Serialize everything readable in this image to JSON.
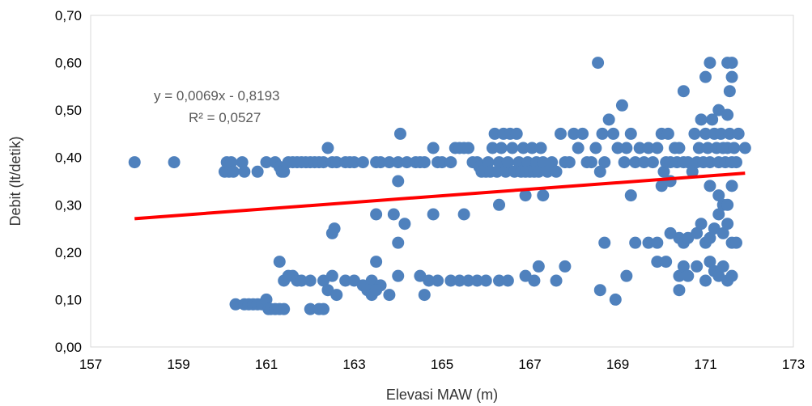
{
  "chart_data": {
    "type": "scatter",
    "title": "",
    "xlabel": "Elevasi MAW (m)",
    "ylabel": "Debit (lt/detik)",
    "xlim": [
      157,
      173
    ],
    "ylim": [
      0,
      0.7
    ],
    "xticks": [
      "157",
      "159",
      "161",
      "163",
      "165",
      "167",
      "169",
      "171",
      "173"
    ],
    "yticks": [
      "0,00",
      "0,10",
      "0,20",
      "0,30",
      "0,40",
      "0,50",
      "0,60",
      "0,70"
    ],
    "grid": false,
    "legend": "none",
    "marker_color": "#4F81BD",
    "trendline": {
      "type": "linear",
      "slope": 0.0069,
      "intercept": -0.8193,
      "x_range": [
        158.0,
        171.9
      ],
      "color": "#FF0000",
      "equation_text": "y = 0,0069x - 0,8193",
      "r2_text": "R² = 0,0527"
    },
    "points": [
      [
        158.0,
        0.39
      ],
      [
        158.9,
        0.39
      ],
      [
        160.05,
        0.37
      ],
      [
        160.1,
        0.39
      ],
      [
        160.15,
        0.37
      ],
      [
        160.2,
        0.39
      ],
      [
        160.25,
        0.37
      ],
      [
        160.45,
        0.39
      ],
      [
        160.5,
        0.37
      ],
      [
        160.8,
        0.37
      ],
      [
        161.0,
        0.39
      ],
      [
        161.2,
        0.39
      ],
      [
        161.3,
        0.38
      ],
      [
        161.35,
        0.37
      ],
      [
        161.4,
        0.37
      ],
      [
        161.5,
        0.39
      ],
      [
        161.6,
        0.39
      ],
      [
        161.7,
        0.39
      ],
      [
        161.8,
        0.39
      ],
      [
        161.9,
        0.39
      ],
      [
        162.0,
        0.39
      ],
      [
        162.1,
        0.39
      ],
      [
        162.2,
        0.39
      ],
      [
        162.3,
        0.39
      ],
      [
        162.4,
        0.42
      ],
      [
        162.5,
        0.39
      ],
      [
        162.6,
        0.39
      ],
      [
        162.8,
        0.39
      ],
      [
        162.9,
        0.39
      ],
      [
        163.0,
        0.39
      ],
      [
        163.2,
        0.39
      ],
      [
        163.5,
        0.39
      ],
      [
        163.6,
        0.39
      ],
      [
        163.8,
        0.39
      ],
      [
        164.0,
        0.39
      ],
      [
        164.05,
        0.45
      ],
      [
        164.2,
        0.39
      ],
      [
        164.4,
        0.39
      ],
      [
        164.5,
        0.39
      ],
      [
        164.6,
        0.39
      ],
      [
        164.8,
        0.42
      ],
      [
        164.9,
        0.39
      ],
      [
        165.0,
        0.39
      ],
      [
        165.2,
        0.39
      ],
      [
        165.3,
        0.42
      ],
      [
        165.4,
        0.42
      ],
      [
        165.5,
        0.42
      ],
      [
        165.6,
        0.42
      ],
      [
        165.7,
        0.39
      ],
      [
        165.8,
        0.39
      ],
      [
        165.85,
        0.38
      ],
      [
        165.9,
        0.37
      ],
      [
        166.0,
        0.37
      ],
      [
        166.05,
        0.39
      ],
      [
        166.1,
        0.37
      ],
      [
        166.15,
        0.42
      ],
      [
        166.2,
        0.45
      ],
      [
        166.25,
        0.37
      ],
      [
        166.3,
        0.39
      ],
      [
        166.35,
        0.42
      ],
      [
        166.4,
        0.45
      ],
      [
        166.45,
        0.37
      ],
      [
        166.5,
        0.39
      ],
      [
        166.55,
        0.45
      ],
      [
        166.6,
        0.42
      ],
      [
        166.65,
        0.37
      ],
      [
        166.7,
        0.45
      ],
      [
        166.75,
        0.39
      ],
      [
        166.8,
        0.37
      ],
      [
        166.85,
        0.42
      ],
      [
        166.9,
        0.37
      ],
      [
        166.95,
        0.39
      ],
      [
        167.0,
        0.37
      ],
      [
        167.05,
        0.42
      ],
      [
        167.1,
        0.37
      ],
      [
        167.15,
        0.39
      ],
      [
        167.2,
        0.37
      ],
      [
        167.25,
        0.42
      ],
      [
        167.3,
        0.39
      ],
      [
        167.4,
        0.37
      ],
      [
        167.5,
        0.39
      ],
      [
        167.6,
        0.37
      ],
      [
        167.7,
        0.45
      ],
      [
        167.8,
        0.39
      ],
      [
        167.9,
        0.39
      ],
      [
        168.0,
        0.45
      ],
      [
        168.1,
        0.42
      ],
      [
        168.2,
        0.45
      ],
      [
        168.3,
        0.39
      ],
      [
        168.4,
        0.39
      ],
      [
        168.5,
        0.42
      ],
      [
        168.6,
        0.37
      ],
      [
        168.65,
        0.45
      ],
      [
        168.7,
        0.39
      ],
      [
        168.8,
        0.48
      ],
      [
        168.9,
        0.45
      ],
      [
        169.0,
        0.42
      ],
      [
        169.1,
        0.51
      ],
      [
        169.15,
        0.39
      ],
      [
        169.2,
        0.42
      ],
      [
        169.3,
        0.45
      ],
      [
        169.4,
        0.39
      ],
      [
        169.5,
        0.42
      ],
      [
        169.6,
        0.39
      ],
      [
        169.7,
        0.42
      ],
      [
        169.8,
        0.39
      ],
      [
        169.9,
        0.42
      ],
      [
        170.0,
        0.45
      ],
      [
        170.05,
        0.37
      ],
      [
        170.1,
        0.39
      ],
      [
        170.15,
        0.45
      ],
      [
        170.2,
        0.39
      ],
      [
        170.3,
        0.42
      ],
      [
        170.35,
        0.39
      ],
      [
        170.4,
        0.42
      ],
      [
        170.5,
        0.39
      ],
      [
        170.6,
        0.39
      ],
      [
        170.7,
        0.37
      ],
      [
        170.75,
        0.45
      ],
      [
        170.8,
        0.39
      ],
      [
        170.85,
        0.42
      ],
      [
        170.9,
        0.48
      ],
      [
        170.95,
        0.39
      ],
      [
        171.0,
        0.45
      ],
      [
        171.05,
        0.42
      ],
      [
        171.1,
        0.39
      ],
      [
        171.15,
        0.48
      ],
      [
        171.2,
        0.45
      ],
      [
        171.25,
        0.42
      ],
      [
        171.3,
        0.39
      ],
      [
        171.35,
        0.45
      ],
      [
        171.4,
        0.42
      ],
      [
        171.45,
        0.39
      ],
      [
        171.5,
        0.42
      ],
      [
        171.55,
        0.45
      ],
      [
        171.6,
        0.39
      ],
      [
        171.65,
        0.42
      ],
      [
        171.7,
        0.39
      ],
      [
        171.75,
        0.45
      ],
      [
        171.9,
        0.42
      ],
      [
        164.0,
        0.35
      ],
      [
        166.3,
        0.3
      ],
      [
        166.9,
        0.32
      ],
      [
        167.3,
        0.32
      ],
      [
        170.0,
        0.34
      ],
      [
        170.2,
        0.35
      ],
      [
        171.1,
        0.34
      ],
      [
        171.3,
        0.32
      ],
      [
        171.4,
        0.3
      ],
      [
        171.5,
        0.3
      ],
      [
        171.6,
        0.34
      ],
      [
        169.3,
        0.32
      ],
      [
        162.5,
        0.24
      ],
      [
        162.55,
        0.25
      ],
      [
        163.5,
        0.28
      ],
      [
        163.9,
        0.28
      ],
      [
        164.15,
        0.26
      ],
      [
        164.0,
        0.22
      ],
      [
        164.8,
        0.28
      ],
      [
        165.5,
        0.28
      ],
      [
        168.7,
        0.22
      ],
      [
        169.4,
        0.22
      ],
      [
        169.7,
        0.22
      ],
      [
        169.9,
        0.22
      ],
      [
        170.2,
        0.24
      ],
      [
        170.4,
        0.23
      ],
      [
        170.5,
        0.22
      ],
      [
        170.6,
        0.23
      ],
      [
        170.8,
        0.24
      ],
      [
        170.9,
        0.26
      ],
      [
        171.0,
        0.22
      ],
      [
        171.1,
        0.23
      ],
      [
        171.2,
        0.25
      ],
      [
        171.3,
        0.28
      ],
      [
        171.4,
        0.24
      ],
      [
        171.5,
        0.26
      ],
      [
        171.6,
        0.22
      ],
      [
        171.7,
        0.22
      ],
      [
        161.3,
        0.18
      ],
      [
        161.4,
        0.14
      ],
      [
        161.5,
        0.15
      ],
      [
        161.6,
        0.15
      ],
      [
        161.7,
        0.14
      ],
      [
        161.8,
        0.14
      ],
      [
        162.0,
        0.14
      ],
      [
        162.3,
        0.14
      ],
      [
        162.5,
        0.15
      ],
      [
        162.8,
        0.14
      ],
      [
        163.0,
        0.14
      ],
      [
        163.2,
        0.13
      ],
      [
        163.4,
        0.14
      ],
      [
        163.5,
        0.18
      ],
      [
        163.6,
        0.13
      ],
      [
        164.0,
        0.15
      ],
      [
        164.5,
        0.15
      ],
      [
        164.7,
        0.14
      ],
      [
        164.9,
        0.14
      ],
      [
        165.2,
        0.14
      ],
      [
        165.4,
        0.14
      ],
      [
        165.6,
        0.14
      ],
      [
        165.8,
        0.14
      ],
      [
        166.0,
        0.14
      ],
      [
        166.3,
        0.14
      ],
      [
        166.5,
        0.14
      ],
      [
        166.9,
        0.15
      ],
      [
        167.1,
        0.14
      ],
      [
        167.2,
        0.17
      ],
      [
        167.6,
        0.14
      ],
      [
        167.8,
        0.17
      ],
      [
        169.2,
        0.15
      ],
      [
        169.9,
        0.18
      ],
      [
        170.1,
        0.18
      ],
      [
        170.4,
        0.15
      ],
      [
        170.5,
        0.17
      ],
      [
        170.6,
        0.15
      ],
      [
        170.8,
        0.17
      ],
      [
        171.0,
        0.14
      ],
      [
        171.1,
        0.18
      ],
      [
        171.2,
        0.16
      ],
      [
        171.3,
        0.15
      ],
      [
        171.4,
        0.17
      ],
      [
        171.5,
        0.14
      ],
      [
        171.6,
        0.15
      ],
      [
        160.3,
        0.09
      ],
      [
        160.5,
        0.09
      ],
      [
        160.6,
        0.09
      ],
      [
        160.7,
        0.09
      ],
      [
        160.8,
        0.09
      ],
      [
        160.9,
        0.09
      ],
      [
        161.0,
        0.1
      ],
      [
        161.05,
        0.08
      ],
      [
        161.1,
        0.08
      ],
      [
        161.2,
        0.08
      ],
      [
        161.3,
        0.08
      ],
      [
        161.4,
        0.08
      ],
      [
        162.0,
        0.08
      ],
      [
        162.2,
        0.08
      ],
      [
        162.3,
        0.08
      ],
      [
        162.4,
        0.12
      ],
      [
        162.6,
        0.11
      ],
      [
        163.3,
        0.12
      ],
      [
        163.4,
        0.11
      ],
      [
        163.5,
        0.12
      ],
      [
        163.8,
        0.11
      ],
      [
        164.6,
        0.11
      ],
      [
        168.6,
        0.12
      ],
      [
        168.95,
        0.1
      ],
      [
        170.4,
        0.12
      ],
      [
        168.55,
        0.6
      ],
      [
        171.1,
        0.6
      ],
      [
        171.5,
        0.6
      ],
      [
        171.6,
        0.6
      ],
      [
        170.5,
        0.54
      ],
      [
        171.55,
        0.54
      ],
      [
        171.0,
        0.57
      ],
      [
        171.6,
        0.57
      ],
      [
        171.3,
        0.5
      ],
      [
        171.5,
        0.49
      ]
    ]
  }
}
